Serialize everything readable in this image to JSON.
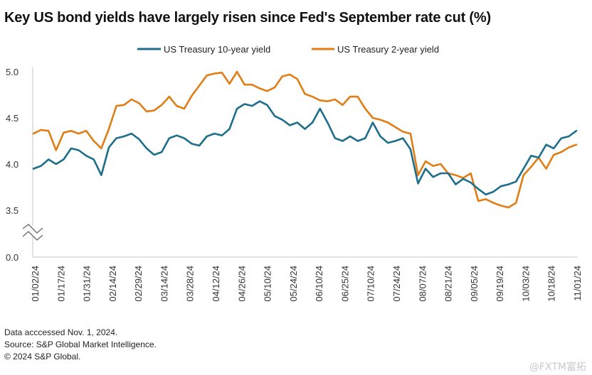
{
  "chart_data": {
    "type": "line",
    "title": "Key US bond yields have largely risen since Fed's September rate cut (%)",
    "y_ticks": [
      "5.0",
      "4.5",
      "4.0",
      "3.5",
      "0.0"
    ],
    "y_break": true,
    "ylim": [
      3.3,
      5.0
    ],
    "grid": false,
    "legend_position": "top-center",
    "x_tick_labels": [
      "01/02/24",
      "01/17/24",
      "01/31/24",
      "02/14/24",
      "02/29/24",
      "03/14/24",
      "03/28/24",
      "04/12/24",
      "04/26/24",
      "05/10/24",
      "05/24/24",
      "06/10/24",
      "06/25/24",
      "07/10/24",
      "07/24/24",
      "08/07/24",
      "08/21/24",
      "09/05/24",
      "09/19/24",
      "10/03/24",
      "10/18/24",
      "11/01/24"
    ],
    "series": [
      {
        "name": "US Treasury 10-year yield",
        "color": "#1d6e8a",
        "values": [
          3.95,
          3.98,
          4.05,
          4.0,
          4.05,
          4.17,
          4.15,
          4.09,
          4.05,
          3.88,
          4.18,
          4.28,
          4.3,
          4.33,
          4.27,
          4.17,
          4.1,
          4.13,
          4.28,
          4.31,
          4.28,
          4.22,
          4.2,
          4.3,
          4.33,
          4.31,
          4.38,
          4.6,
          4.65,
          4.63,
          4.68,
          4.64,
          4.52,
          4.48,
          4.42,
          4.45,
          4.38,
          4.45,
          4.6,
          4.45,
          4.28,
          4.25,
          4.3,
          4.25,
          4.28,
          4.45,
          4.3,
          4.23,
          4.25,
          4.28,
          4.16,
          3.79,
          3.95,
          3.86,
          3.9,
          3.9,
          3.78,
          3.84,
          3.8,
          3.73,
          3.67,
          3.7,
          3.76,
          3.78,
          3.81,
          3.95,
          4.09,
          4.07,
          4.21,
          4.17,
          4.28,
          4.3,
          4.36
        ]
      },
      {
        "name": "US Treasury 2-year yield",
        "color": "#e07e15",
        "values": [
          4.33,
          4.37,
          4.36,
          4.15,
          4.34,
          4.36,
          4.33,
          4.36,
          4.25,
          4.17,
          4.38,
          4.63,
          4.64,
          4.7,
          4.66,
          4.57,
          4.58,
          4.64,
          4.73,
          4.63,
          4.6,
          4.74,
          4.85,
          4.96,
          4.98,
          4.99,
          4.87,
          5.0,
          4.86,
          4.86,
          4.82,
          4.79,
          4.83,
          4.95,
          4.97,
          4.92,
          4.76,
          4.73,
          4.69,
          4.68,
          4.7,
          4.64,
          4.73,
          4.73,
          4.6,
          4.5,
          4.48,
          4.45,
          4.4,
          4.35,
          4.33,
          3.88,
          4.03,
          3.98,
          4.0,
          3.9,
          3.88,
          3.85,
          3.9,
          3.6,
          3.62,
          3.58,
          3.55,
          3.53,
          3.58,
          3.88,
          3.97,
          4.07,
          3.95,
          4.1,
          4.13,
          4.18,
          4.21
        ]
      }
    ]
  },
  "footnotes": [
    "Data acccessed Nov. 1, 2024.",
    "Source: S&P Global Market Intelligence.",
    "© 2024 S&P Global."
  ],
  "watermark": "@FXTM富拓"
}
